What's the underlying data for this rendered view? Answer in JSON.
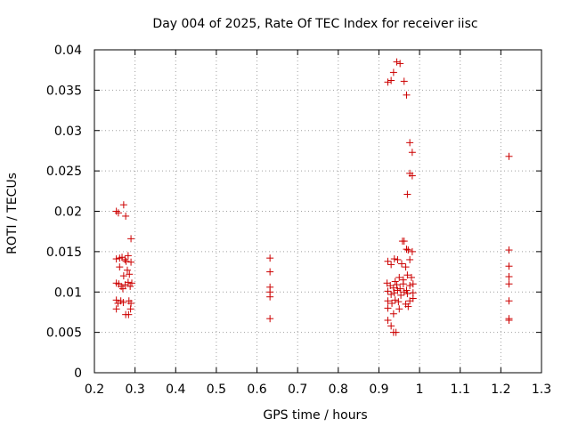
{
  "chart_data": {
    "type": "scatter",
    "title": "Day 004 of 2025, Rate Of TEC Index for receiver iisc",
    "xlabel": "GPS time / hours",
    "ylabel": "ROTI / TECUs",
    "xlim": [
      0.2,
      1.3
    ],
    "ylim": [
      0,
      0.04
    ],
    "xticks": [
      0.2,
      0.3,
      0.4,
      0.5,
      0.6,
      0.7,
      0.8,
      0.9,
      1.0,
      1.1,
      1.2,
      1.3
    ],
    "xtick_labels": [
      "0.2",
      "0.3",
      "0.4",
      "0.5",
      "0.6",
      "0.7",
      "0.8",
      "0.9",
      "1",
      "1.1",
      "1.2",
      "1.3"
    ],
    "yticks": [
      0,
      0.005,
      0.01,
      0.015,
      0.02,
      0.025,
      0.03,
      0.035,
      0.04
    ],
    "ytick_labels": [
      "0",
      "0.005",
      "0.01",
      "0.015",
      "0.02",
      "0.025",
      "0.03",
      "0.035",
      "0.04"
    ],
    "grid": true,
    "marker": "+",
    "marker_color": "#cc0000",
    "points": [
      [
        0.254,
        0.02
      ],
      [
        0.259,
        0.0198
      ],
      [
        0.272,
        0.0208
      ],
      [
        0.277,
        0.0194
      ],
      [
        0.29,
        0.0166
      ],
      [
        0.254,
        0.0141
      ],
      [
        0.262,
        0.0142
      ],
      [
        0.268,
        0.0143
      ],
      [
        0.275,
        0.014
      ],
      [
        0.283,
        0.0145
      ],
      [
        0.29,
        0.0137
      ],
      [
        0.278,
        0.0138
      ],
      [
        0.262,
        0.0131
      ],
      [
        0.281,
        0.0127
      ],
      [
        0.272,
        0.012
      ],
      [
        0.286,
        0.0122
      ],
      [
        0.254,
        0.0111
      ],
      [
        0.26,
        0.011
      ],
      [
        0.266,
        0.0107
      ],
      [
        0.27,
        0.0104
      ],
      [
        0.276,
        0.0109
      ],
      [
        0.283,
        0.0112
      ],
      [
        0.288,
        0.0107
      ],
      [
        0.292,
        0.0111
      ],
      [
        0.254,
        0.009
      ],
      [
        0.258,
        0.0086
      ],
      [
        0.265,
        0.0089
      ],
      [
        0.271,
        0.0087
      ],
      [
        0.285,
        0.0089
      ],
      [
        0.29,
        0.0086
      ],
      [
        0.254,
        0.0079
      ],
      [
        0.277,
        0.0072
      ],
      [
        0.289,
        0.0079
      ],
      [
        0.284,
        0.0072
      ],
      [
        0.632,
        0.0142
      ],
      [
        0.632,
        0.0125
      ],
      [
        0.632,
        0.0106
      ],
      [
        0.632,
        0.01
      ],
      [
        0.632,
        0.0094
      ],
      [
        0.632,
        0.0067
      ],
      [
        0.922,
        0.036
      ],
      [
        0.93,
        0.0362
      ],
      [
        0.936,
        0.0372
      ],
      [
        0.944,
        0.0385
      ],
      [
        0.952,
        0.0383
      ],
      [
        0.962,
        0.0361
      ],
      [
        0.968,
        0.0344
      ],
      [
        0.976,
        0.0285
      ],
      [
        0.982,
        0.0273
      ],
      [
        0.976,
        0.0247
      ],
      [
        0.982,
        0.0244
      ],
      [
        0.97,
        0.0221
      ],
      [
        0.958,
        0.0163
      ],
      [
        0.962,
        0.0163
      ],
      [
        0.968,
        0.0153
      ],
      [
        0.972,
        0.0152
      ],
      [
        0.982,
        0.015
      ],
      [
        0.922,
        0.0138
      ],
      [
        0.93,
        0.0134
      ],
      [
        0.938,
        0.0141
      ],
      [
        0.946,
        0.014
      ],
      [
        0.956,
        0.0135
      ],
      [
        0.966,
        0.0131
      ],
      [
        0.976,
        0.014
      ],
      [
        0.94,
        0.0113
      ],
      [
        0.95,
        0.0118
      ],
      [
        0.96,
        0.0115
      ],
      [
        0.97,
        0.0121
      ],
      [
        0.98,
        0.0118
      ],
      [
        0.92,
        0.0111
      ],
      [
        0.928,
        0.0108
      ],
      [
        0.936,
        0.0105
      ],
      [
        0.944,
        0.0109
      ],
      [
        0.952,
        0.0104
      ],
      [
        0.96,
        0.011
      ],
      [
        0.968,
        0.0102
      ],
      [
        0.976,
        0.0108
      ],
      [
        0.984,
        0.011
      ],
      [
        0.922,
        0.0101
      ],
      [
        0.93,
        0.0097
      ],
      [
        0.938,
        0.0099
      ],
      [
        0.946,
        0.0102
      ],
      [
        0.954,
        0.0096
      ],
      [
        0.962,
        0.01
      ],
      [
        0.97,
        0.0098
      ],
      [
        0.984,
        0.0099
      ],
      [
        0.922,
        0.0089
      ],
      [
        0.932,
        0.0086
      ],
      [
        0.94,
        0.009
      ],
      [
        0.948,
        0.0088
      ],
      [
        0.966,
        0.0085
      ],
      [
        0.976,
        0.0089
      ],
      [
        0.984,
        0.0092
      ],
      [
        0.922,
        0.008
      ],
      [
        0.936,
        0.0073
      ],
      [
        0.95,
        0.0079
      ],
      [
        0.972,
        0.0082
      ],
      [
        0.922,
        0.0065
      ],
      [
        0.93,
        0.0058
      ],
      [
        0.936,
        0.005
      ],
      [
        0.942,
        0.005
      ],
      [
        1.22,
        0.0268
      ],
      [
        1.22,
        0.0152
      ],
      [
        1.22,
        0.0132
      ],
      [
        1.22,
        0.0119
      ],
      [
        1.22,
        0.011
      ],
      [
        1.22,
        0.0089
      ],
      [
        1.22,
        0.0067
      ],
      [
        1.22,
        0.0065
      ]
    ]
  }
}
